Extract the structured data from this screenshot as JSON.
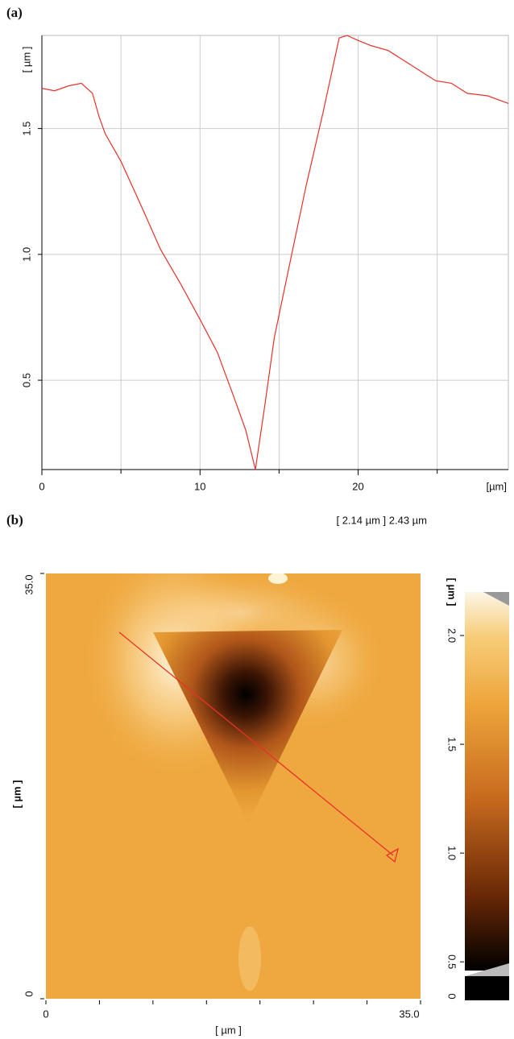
{
  "chart_data": [
    {
      "type": "line",
      "title": "(a)",
      "ylabel": "[ µm ]",
      "xlabel": "[µm]",
      "x": [
        0,
        0.8,
        1.7,
        2.5,
        3.2,
        3.6,
        4.0,
        5.0,
        6.3,
        7.5,
        8.8,
        10.1,
        11.1,
        12.1,
        12.9,
        13.5,
        14.1,
        14.7,
        15.7,
        16.7,
        17.8,
        18.8,
        19.3,
        20.0,
        20.8,
        21.9,
        22.9,
        23.9,
        24.9,
        25.9,
        26.9,
        28.2,
        29.5
      ],
      "values": [
        1.66,
        1.65,
        1.67,
        1.68,
        1.64,
        1.55,
        1.48,
        1.37,
        1.19,
        1.02,
        0.88,
        0.73,
        0.61,
        0.44,
        0.3,
        0.145,
        0.4,
        0.67,
        0.97,
        1.27,
        1.57,
        1.86,
        1.87,
        1.85,
        1.83,
        1.81,
        1.77,
        1.73,
        1.69,
        1.68,
        1.64,
        1.63,
        1.6
      ],
      "color": "#e8312a",
      "xlim": [
        0,
        29.5
      ],
      "ylim": [
        0.145,
        1.87
      ],
      "xticks": [
        0,
        10,
        20
      ],
      "x_minor_ticks": [
        5,
        15,
        25
      ],
      "yticks": [
        0.5,
        {
          "value": 1,
          "label": "1.0"
        },
        1.5
      ],
      "grid": true
    },
    {
      "type": "image",
      "title": "(b)",
      "annotation": "[ 2.14 µm ] 2.43 µm",
      "xlabel": "[ µm ]",
      "ylabel": "[ µm ]",
      "xlim": [
        0,
        35
      ],
      "ylim": [
        0,
        35
      ],
      "xticks": [
        0,
        {
          "value": 35,
          "label": "35.0"
        }
      ],
      "x_minor_ticks": [
        5,
        10,
        15,
        20,
        25,
        30
      ],
      "yticks": [
        0,
        {
          "value": 35,
          "label": "35.0"
        }
      ],
      "colorbar": {
        "label": "[ µm ]",
        "lim": [
          0.46,
          2.2
        ],
        "ticks": [
          0.5,
          {
            "value": 1,
            "label": "1.0"
          },
          1.5,
          {
            "value": 2,
            "label": "2.0"
          }
        ],
        "min_label": 0
      }
    }
  ]
}
